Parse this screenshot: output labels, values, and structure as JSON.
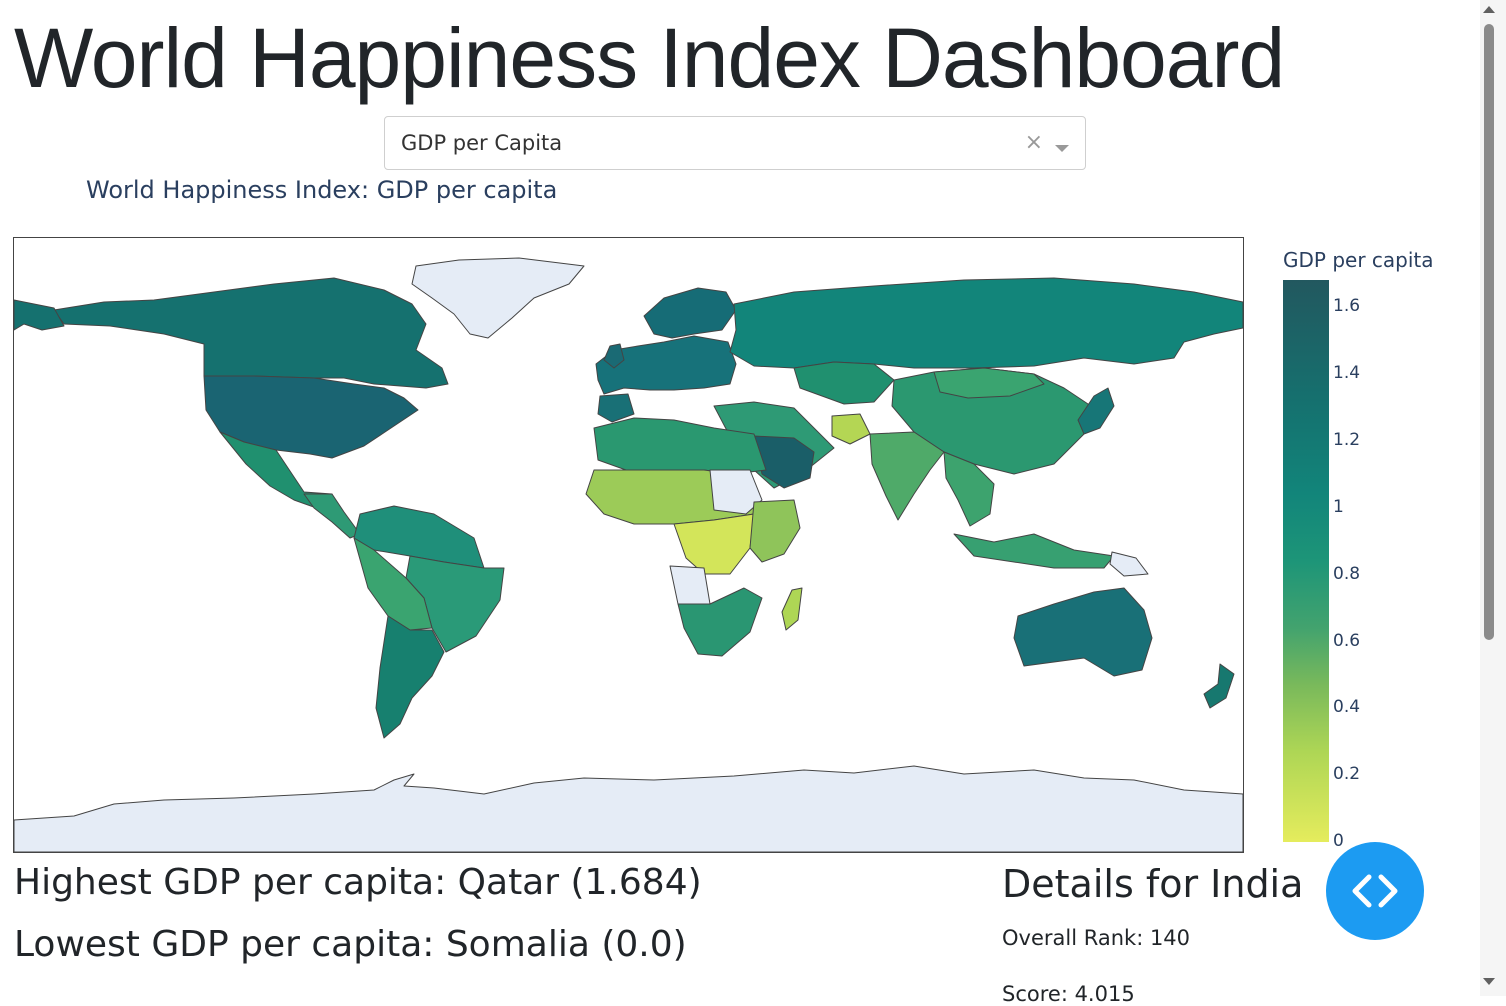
{
  "page": {
    "title": "World Happiness Index Dashboard"
  },
  "dropdown": {
    "selected": "GDP per Capita",
    "clear_icon": "×"
  },
  "map": {
    "title": "World Happiness Index: GDP per capita",
    "colorbar": {
      "title": "GDP per capita",
      "ticks": [
        "1.6",
        "1.4",
        "1.2",
        "1",
        "0.8",
        "0.6",
        "0.4",
        "0.2",
        "0"
      ]
    }
  },
  "stats": {
    "highest": "Highest GDP per capita: Qatar (1.684)",
    "lowest": "Lowest GDP per capita: Somalia (0.0)"
  },
  "details": {
    "title": "Details for India",
    "rank": "Overall Rank: 140",
    "score": "Score: 4.015"
  },
  "colors": {
    "no_data": "#e5ecf6",
    "high": "#22585f",
    "mid": "#1d9578",
    "low": "#e5ec5d",
    "fab": "#1c9bf2"
  }
}
